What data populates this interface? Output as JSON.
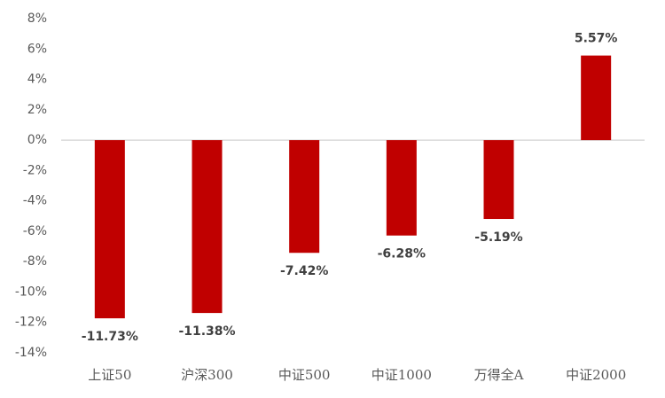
{
  "chart_data": {
    "type": "bar",
    "categories": [
      "上证50",
      "沪深300",
      "中证500",
      "中证1000",
      "万得全A",
      "中证2000"
    ],
    "values": [
      -11.73,
      -11.38,
      -7.42,
      -6.28,
      -5.19,
      5.57
    ],
    "value_labels": [
      "-11.73%",
      "-11.38%",
      "-7.42%",
      "-6.28%",
      "-5.19%",
      "5.57%"
    ],
    "color": "#c00000",
    "ylim": [
      -14,
      8
    ],
    "yticks": [
      {
        "value": 8,
        "label": "8%"
      },
      {
        "value": 6,
        "label": "6%"
      },
      {
        "value": 4,
        "label": "4%"
      },
      {
        "value": 2,
        "label": "2%"
      },
      {
        "value": 0,
        "label": "0%"
      },
      {
        "value": -2,
        "label": "-2%"
      },
      {
        "value": -4,
        "label": "-4%"
      },
      {
        "value": -6,
        "label": "-6%"
      },
      {
        "value": -8,
        "label": "-8%"
      },
      {
        "value": -10,
        "label": "-10%"
      },
      {
        "value": -12,
        "label": "-12%"
      },
      {
        "value": -14,
        "label": "-14%"
      }
    ],
    "grid": false
  }
}
